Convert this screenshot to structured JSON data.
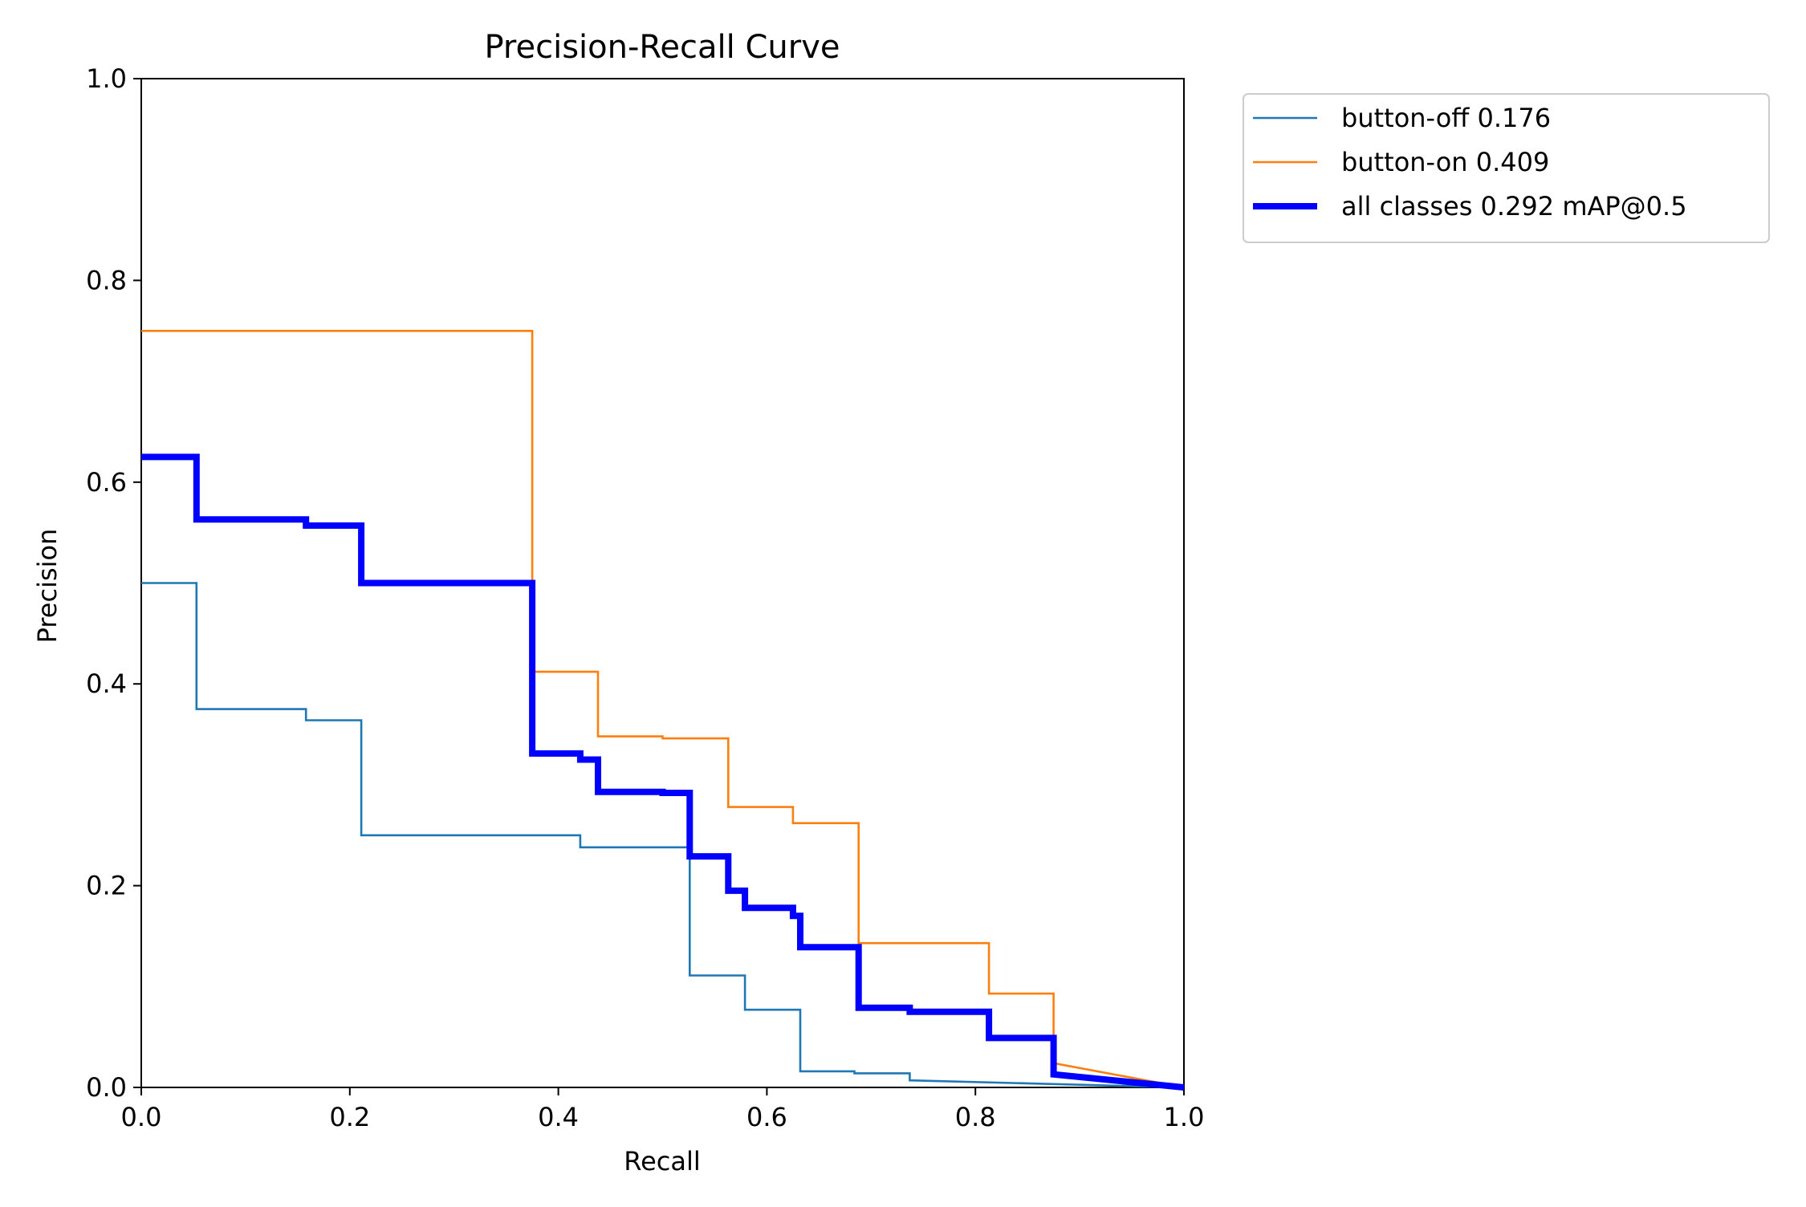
{
  "chart_data": {
    "type": "line",
    "title": "Precision-Recall Curve",
    "xlabel": "Recall",
    "ylabel": "Precision",
    "xlim": [
      0,
      1
    ],
    "ylim": [
      0,
      1
    ],
    "x_ticks": [
      "0.0",
      "0.2",
      "0.4",
      "0.6",
      "0.8",
      "1.0"
    ],
    "y_ticks": [
      "0.0",
      "0.2",
      "0.4",
      "0.6",
      "0.8",
      "1.0"
    ],
    "grid": false,
    "legend_position": "outside-top-right",
    "series": [
      {
        "name": "button-off 0.176",
        "color": "#1f77b4",
        "line_weight": "thin",
        "points": [
          [
            0.0,
            0.5
          ],
          [
            0.053,
            0.5
          ],
          [
            0.053,
            0.375
          ],
          [
            0.158,
            0.375
          ],
          [
            0.158,
            0.364
          ],
          [
            0.211,
            0.364
          ],
          [
            0.211,
            0.25
          ],
          [
            0.421,
            0.25
          ],
          [
            0.421,
            0.238
          ],
          [
            0.526,
            0.238
          ],
          [
            0.526,
            0.111
          ],
          [
            0.579,
            0.111
          ],
          [
            0.579,
            0.077
          ],
          [
            0.632,
            0.077
          ],
          [
            0.632,
            0.016
          ],
          [
            0.684,
            0.016
          ],
          [
            0.684,
            0.014
          ],
          [
            0.737,
            0.014
          ],
          [
            0.737,
            0.007
          ],
          [
            1.0,
            0.0
          ]
        ]
      },
      {
        "name": "button-on 0.409",
        "color": "#ff7f0e",
        "line_weight": "thin",
        "points": [
          [
            0.0,
            0.75
          ],
          [
            0.375,
            0.75
          ],
          [
            0.375,
            0.412
          ],
          [
            0.438,
            0.412
          ],
          [
            0.438,
            0.348
          ],
          [
            0.5,
            0.348
          ],
          [
            0.5,
            0.346
          ],
          [
            0.563,
            0.346
          ],
          [
            0.563,
            0.278
          ],
          [
            0.625,
            0.278
          ],
          [
            0.625,
            0.262
          ],
          [
            0.688,
            0.262
          ],
          [
            0.688,
            0.143
          ],
          [
            0.813,
            0.143
          ],
          [
            0.813,
            0.093
          ],
          [
            0.875,
            0.093
          ],
          [
            0.875,
            0.024
          ],
          [
            1.0,
            0.0
          ]
        ]
      },
      {
        "name": "all classes 0.292 mAP@0.5",
        "color": "#0000ff",
        "line_weight": "thick",
        "points": [
          [
            0.0,
            0.625
          ],
          [
            0.053,
            0.625
          ],
          [
            0.053,
            0.563
          ],
          [
            0.158,
            0.563
          ],
          [
            0.158,
            0.557
          ],
          [
            0.211,
            0.557
          ],
          [
            0.211,
            0.5
          ],
          [
            0.375,
            0.5
          ],
          [
            0.375,
            0.331
          ],
          [
            0.421,
            0.331
          ],
          [
            0.421,
            0.325
          ],
          [
            0.438,
            0.325
          ],
          [
            0.438,
            0.293
          ],
          [
            0.5,
            0.293
          ],
          [
            0.5,
            0.292
          ],
          [
            0.526,
            0.292
          ],
          [
            0.526,
            0.229
          ],
          [
            0.563,
            0.229
          ],
          [
            0.563,
            0.195
          ],
          [
            0.579,
            0.195
          ],
          [
            0.579,
            0.178
          ],
          [
            0.625,
            0.178
          ],
          [
            0.625,
            0.17
          ],
          [
            0.632,
            0.17
          ],
          [
            0.632,
            0.139
          ],
          [
            0.688,
            0.139
          ],
          [
            0.688,
            0.079
          ],
          [
            0.737,
            0.079
          ],
          [
            0.737,
            0.075
          ],
          [
            0.813,
            0.075
          ],
          [
            0.813,
            0.049
          ],
          [
            0.875,
            0.049
          ],
          [
            0.875,
            0.013
          ],
          [
            1.0,
            0.0
          ]
        ]
      }
    ]
  }
}
